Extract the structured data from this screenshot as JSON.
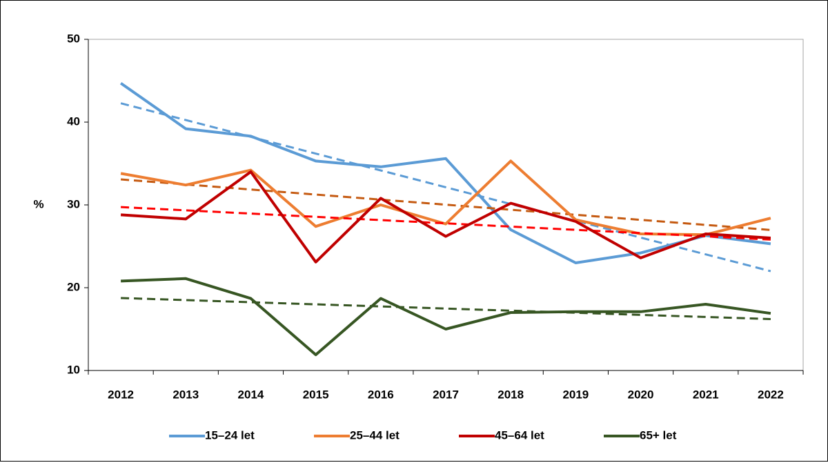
{
  "chart_data": {
    "type": "line",
    "y_label": "%",
    "categories": [
      "2012",
      "2013",
      "2014",
      "2015",
      "2016",
      "2017",
      "2018",
      "2019",
      "2020",
      "2021",
      "2022"
    ],
    "series": [
      {
        "name": "15–24 let",
        "color": "#5b9bd5",
        "trend_color": "#5b9bd5",
        "values": [
          44.7,
          39.2,
          38.3,
          35.3,
          34.6,
          35.6,
          27.0,
          23.0,
          24.2,
          26.3,
          25.3
        ]
      },
      {
        "name": "25–44 let",
        "color": "#ed7d31",
        "trend_color": "#c55a11",
        "values": [
          33.8,
          32.4,
          34.2,
          27.4,
          30.0,
          27.7,
          35.3,
          28.2,
          26.5,
          26.4,
          28.4
        ]
      },
      {
        "name": "45–64 let",
        "color": "#c00000",
        "trend_color": "#ff0000",
        "values": [
          28.8,
          28.3,
          34.0,
          23.1,
          30.8,
          26.2,
          30.2,
          28.0,
          23.6,
          26.5,
          26.0
        ]
      },
      {
        "name": "65+ let",
        "color": "#375623",
        "trend_color": "#375623",
        "values": [
          20.8,
          21.1,
          18.7,
          11.9,
          18.7,
          15.0,
          17.0,
          17.1,
          17.1,
          18.0,
          16.9
        ]
      }
    ],
    "trendline": true,
    "ylim": [
      10,
      50
    ],
    "yticks": [
      10,
      20,
      30,
      40,
      50
    ],
    "grid": false,
    "legend": "bottom"
  }
}
